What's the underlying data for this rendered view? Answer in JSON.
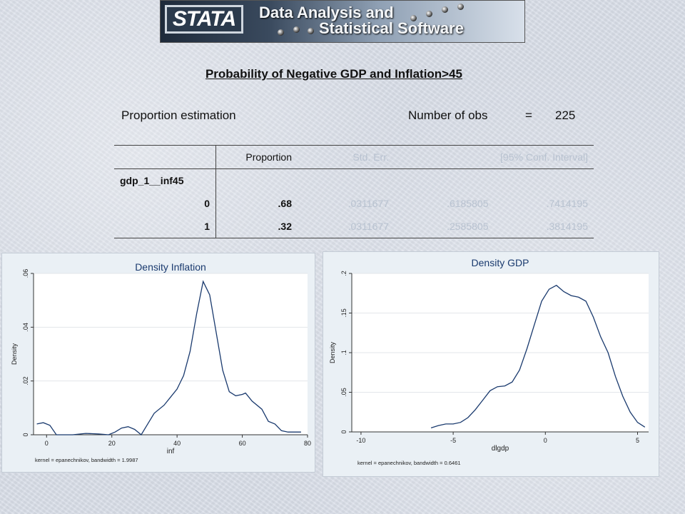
{
  "banner": {
    "logo": "STATA",
    "line1": "Data Analysis and",
    "line2": "Statistical Software"
  },
  "page_title": "Probability of Negative GDP and Inflation>45",
  "estimation": {
    "title": "Proportion estimation",
    "obs_label": "Number of obs",
    "obs_eq": "=",
    "obs_value": "225"
  },
  "table": {
    "headers": [
      "",
      "Proportion",
      "Std. Err.",
      "[95% Conf. Interval]"
    ],
    "group_label": "gdp_1__inf45",
    "rows": [
      {
        "level": "0",
        "proportion": ".68",
        "std_err": ".0311677",
        "ci_low": ".6185805",
        "ci_high": ".7414195"
      },
      {
        "level": "1",
        "proportion": ".32",
        "std_err": ".0311677",
        "ci_low": ".2585805",
        "ci_high": ".3814195"
      }
    ]
  },
  "chart_data": [
    {
      "type": "line",
      "title": "Density Inflation",
      "xlabel": "inf",
      "ylabel": "Density",
      "note": "kernel = epanechnikov, bandwidth = 1.9987",
      "xlim": [
        -4,
        80
      ],
      "ylim": [
        0,
        0.06
      ],
      "xticks": [
        0,
        20,
        40,
        60,
        80
      ],
      "yticks": [
        0,
        0.02,
        0.04,
        0.06
      ],
      "xtick_labels": [
        "0",
        "20",
        "40",
        "60",
        "80"
      ],
      "ytick_labels": [
        "0",
        ".02",
        ".04",
        ".06"
      ],
      "grid": true,
      "color": "#1a3a6e",
      "x": [
        -3,
        -1,
        1,
        3,
        5,
        8,
        12,
        16,
        19,
        21,
        23,
        25,
        27,
        29,
        31,
        33,
        36,
        38,
        40,
        42,
        44,
        46,
        48,
        50,
        52,
        54,
        56,
        58,
        60,
        61,
        63,
        66,
        68,
        70,
        72,
        74,
        76,
        78
      ],
      "y": [
        0.004,
        0.0045,
        0.0035,
        0.0,
        0.0,
        0.0,
        0.0005,
        0.0003,
        0.0,
        0.001,
        0.0025,
        0.003,
        0.002,
        0.0,
        0.004,
        0.008,
        0.011,
        0.014,
        0.017,
        0.022,
        0.031,
        0.045,
        0.057,
        0.052,
        0.038,
        0.024,
        0.016,
        0.0145,
        0.015,
        0.0155,
        0.0125,
        0.0095,
        0.005,
        0.004,
        0.0015,
        0.001,
        0.001,
        0.001
      ]
    },
    {
      "type": "line",
      "title": "Density GDP",
      "xlabel": "dlgdp",
      "ylabel": "Density",
      "note": "kernel = epanechnikov, bandwidth = 0.6461",
      "xlim": [
        -10.5,
        5.6
      ],
      "ylim": [
        0,
        0.2
      ],
      "xticks": [
        -10,
        -5,
        0,
        5
      ],
      "yticks": [
        0,
        0.05,
        0.1,
        0.15,
        0.2
      ],
      "xtick_labels": [
        "-10",
        "-5",
        "0",
        "5"
      ],
      "ytick_labels": [
        "0",
        ".05",
        ".1",
        ".15",
        ".2"
      ],
      "grid": true,
      "color": "#1a3a6e",
      "x": [
        -6.2,
        -5.8,
        -5.4,
        -5.0,
        -4.6,
        -4.2,
        -3.8,
        -3.4,
        -3.0,
        -2.6,
        -2.2,
        -1.8,
        -1.4,
        -1.0,
        -0.6,
        -0.2,
        0.2,
        0.6,
        1.0,
        1.4,
        1.8,
        2.2,
        2.6,
        3.0,
        3.4,
        3.8,
        4.2,
        4.6,
        5.0,
        5.4
      ],
      "y": [
        0.005,
        0.008,
        0.01,
        0.01,
        0.012,
        0.018,
        0.028,
        0.04,
        0.052,
        0.057,
        0.058,
        0.063,
        0.078,
        0.105,
        0.135,
        0.165,
        0.18,
        0.185,
        0.177,
        0.172,
        0.17,
        0.165,
        0.145,
        0.12,
        0.1,
        0.07,
        0.045,
        0.025,
        0.012,
        0.006
      ]
    }
  ]
}
